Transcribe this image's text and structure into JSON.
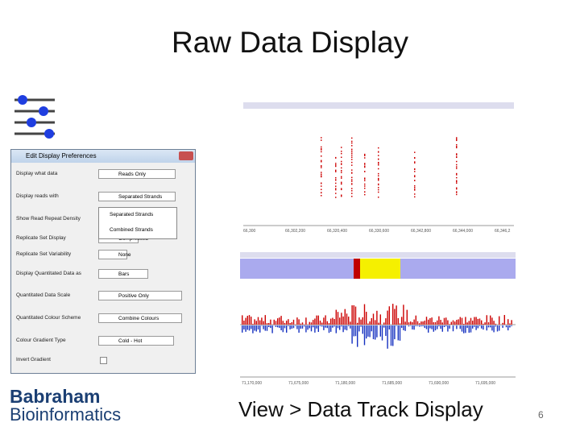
{
  "slide": {
    "title": "Raw Data Display",
    "caption": "View > Data Track Display",
    "page_number": "6",
    "logo": {
      "line1": "Babraham",
      "line2": "Bioinformatics"
    }
  },
  "dialog": {
    "title": "Edit Display Preferences",
    "rows": [
      {
        "label": "Display what data",
        "value": "Reads Only"
      },
      {
        "label": "Display reads with",
        "value": "Separated Strands"
      },
      {
        "label": "Show Read Repeat Density",
        "value": ""
      },
      {
        "label": "Replicate Set Display",
        "value": "Compressed"
      },
      {
        "label": "Replicate Set Variability",
        "value": "None"
      },
      {
        "label": "Display Quantitated Data as",
        "value": "Bars"
      },
      {
        "label": "Quantitated Data Scale",
        "value": "Positive Only"
      },
      {
        "label": "Quantitated Colour Scheme",
        "value": "Combine Colours"
      },
      {
        "label": "Colour Gradient Type",
        "value": "Cold - Hot"
      },
      {
        "label": "Invert Gradient",
        "value": ""
      }
    ],
    "dropdown_options": [
      "Separated Strands",
      "Combined Strands"
    ]
  },
  "tracks": {
    "top_axis": [
      "66,300",
      "66,302,200",
      "66,320,400",
      "66,330,600",
      "66,342,800",
      "66,344,000",
      "66,346,2"
    ],
    "bottom_axis": [
      "71,170,000",
      "71,675,000",
      "71,180,000",
      "71,685,000",
      "71,690,000",
      "71,695,000"
    ]
  }
}
